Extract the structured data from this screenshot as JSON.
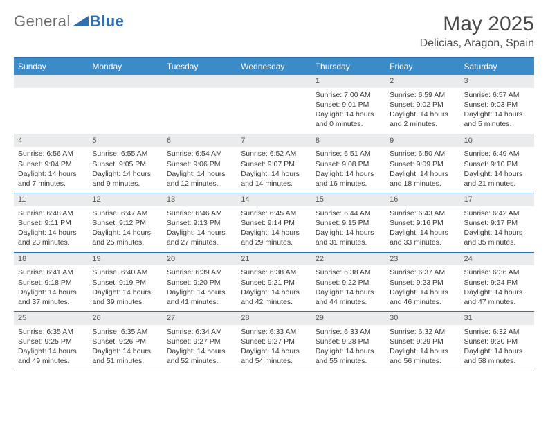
{
  "brand": {
    "part1": "General",
    "part2": "Blue"
  },
  "title": "May 2025",
  "location": "Delicias, Aragon, Spain",
  "colors": {
    "accent": "#2f6fad",
    "header_bar": "#3b8bc9",
    "daynum_bg": "#e9ebec",
    "text": "#3a3a3a",
    "muted": "#6b6b6b",
    "white": "#ffffff"
  },
  "layout": {
    "columns": 7,
    "rows": 5,
    "first_weekday_index": 4
  },
  "dow": [
    "Sunday",
    "Monday",
    "Tuesday",
    "Wednesday",
    "Thursday",
    "Friday",
    "Saturday"
  ],
  "days": [
    {
      "n": 1,
      "sunrise": "7:00 AM",
      "sunset": "9:01 PM",
      "daylight": "14 hours and 0 minutes."
    },
    {
      "n": 2,
      "sunrise": "6:59 AM",
      "sunset": "9:02 PM",
      "daylight": "14 hours and 2 minutes."
    },
    {
      "n": 3,
      "sunrise": "6:57 AM",
      "sunset": "9:03 PM",
      "daylight": "14 hours and 5 minutes."
    },
    {
      "n": 4,
      "sunrise": "6:56 AM",
      "sunset": "9:04 PM",
      "daylight": "14 hours and 7 minutes."
    },
    {
      "n": 5,
      "sunrise": "6:55 AM",
      "sunset": "9:05 PM",
      "daylight": "14 hours and 9 minutes."
    },
    {
      "n": 6,
      "sunrise": "6:54 AM",
      "sunset": "9:06 PM",
      "daylight": "14 hours and 12 minutes."
    },
    {
      "n": 7,
      "sunrise": "6:52 AM",
      "sunset": "9:07 PM",
      "daylight": "14 hours and 14 minutes."
    },
    {
      "n": 8,
      "sunrise": "6:51 AM",
      "sunset": "9:08 PM",
      "daylight": "14 hours and 16 minutes."
    },
    {
      "n": 9,
      "sunrise": "6:50 AM",
      "sunset": "9:09 PM",
      "daylight": "14 hours and 18 minutes."
    },
    {
      "n": 10,
      "sunrise": "6:49 AM",
      "sunset": "9:10 PM",
      "daylight": "14 hours and 21 minutes."
    },
    {
      "n": 11,
      "sunrise": "6:48 AM",
      "sunset": "9:11 PM",
      "daylight": "14 hours and 23 minutes."
    },
    {
      "n": 12,
      "sunrise": "6:47 AM",
      "sunset": "9:12 PM",
      "daylight": "14 hours and 25 minutes."
    },
    {
      "n": 13,
      "sunrise": "6:46 AM",
      "sunset": "9:13 PM",
      "daylight": "14 hours and 27 minutes."
    },
    {
      "n": 14,
      "sunrise": "6:45 AM",
      "sunset": "9:14 PM",
      "daylight": "14 hours and 29 minutes."
    },
    {
      "n": 15,
      "sunrise": "6:44 AM",
      "sunset": "9:15 PM",
      "daylight": "14 hours and 31 minutes."
    },
    {
      "n": 16,
      "sunrise": "6:43 AM",
      "sunset": "9:16 PM",
      "daylight": "14 hours and 33 minutes."
    },
    {
      "n": 17,
      "sunrise": "6:42 AM",
      "sunset": "9:17 PM",
      "daylight": "14 hours and 35 minutes."
    },
    {
      "n": 18,
      "sunrise": "6:41 AM",
      "sunset": "9:18 PM",
      "daylight": "14 hours and 37 minutes."
    },
    {
      "n": 19,
      "sunrise": "6:40 AM",
      "sunset": "9:19 PM",
      "daylight": "14 hours and 39 minutes."
    },
    {
      "n": 20,
      "sunrise": "6:39 AM",
      "sunset": "9:20 PM",
      "daylight": "14 hours and 41 minutes."
    },
    {
      "n": 21,
      "sunrise": "6:38 AM",
      "sunset": "9:21 PM",
      "daylight": "14 hours and 42 minutes."
    },
    {
      "n": 22,
      "sunrise": "6:38 AM",
      "sunset": "9:22 PM",
      "daylight": "14 hours and 44 minutes."
    },
    {
      "n": 23,
      "sunrise": "6:37 AM",
      "sunset": "9:23 PM",
      "daylight": "14 hours and 46 minutes."
    },
    {
      "n": 24,
      "sunrise": "6:36 AM",
      "sunset": "9:24 PM",
      "daylight": "14 hours and 47 minutes."
    },
    {
      "n": 25,
      "sunrise": "6:35 AM",
      "sunset": "9:25 PM",
      "daylight": "14 hours and 49 minutes."
    },
    {
      "n": 26,
      "sunrise": "6:35 AM",
      "sunset": "9:26 PM",
      "daylight": "14 hours and 51 minutes."
    },
    {
      "n": 27,
      "sunrise": "6:34 AM",
      "sunset": "9:27 PM",
      "daylight": "14 hours and 52 minutes."
    },
    {
      "n": 28,
      "sunrise": "6:33 AM",
      "sunset": "9:27 PM",
      "daylight": "14 hours and 54 minutes."
    },
    {
      "n": 29,
      "sunrise": "6:33 AM",
      "sunset": "9:28 PM",
      "daylight": "14 hours and 55 minutes."
    },
    {
      "n": 30,
      "sunrise": "6:32 AM",
      "sunset": "9:29 PM",
      "daylight": "14 hours and 56 minutes."
    },
    {
      "n": 31,
      "sunrise": "6:32 AM",
      "sunset": "9:30 PM",
      "daylight": "14 hours and 58 minutes."
    }
  ],
  "labels": {
    "sunrise": "Sunrise:",
    "sunset": "Sunset:",
    "daylight": "Daylight:"
  }
}
